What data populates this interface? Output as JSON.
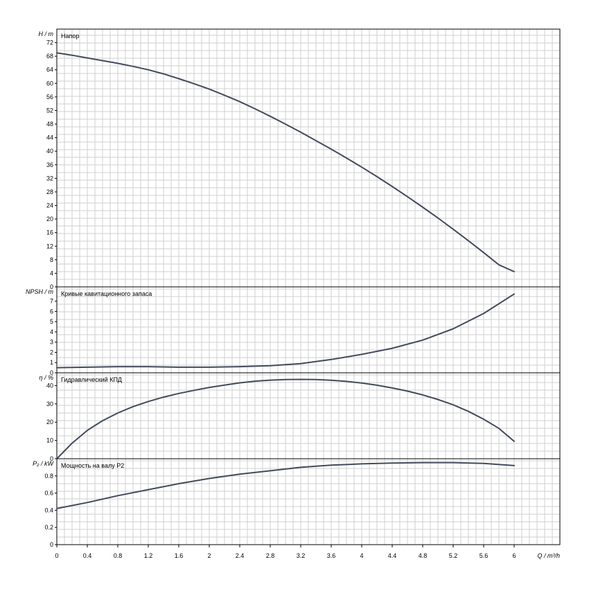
{
  "chart_data": {
    "type": "line",
    "x_unit_label": "Q / m³/h",
    "x_ticks": [
      0,
      0.4,
      0.8,
      1.2,
      1.6,
      2,
      2.4,
      2.8,
      3.2,
      3.6,
      4,
      4.4,
      4.8,
      5.2,
      5.6,
      6
    ],
    "x_range": [
      0,
      6.6
    ],
    "panels": [
      {
        "id": "head",
        "title": "Напор",
        "ylabel": "H / m",
        "ylim": [
          0,
          76
        ],
        "y_ticks": [
          0,
          4,
          8,
          12,
          16,
          20,
          24,
          28,
          32,
          36,
          40,
          44,
          48,
          52,
          56,
          60,
          64,
          68,
          72
        ],
        "series": [
          {
            "x": [
              0,
              0.2,
              0.4,
              0.6,
              0.8,
              1.0,
              1.2,
              1.4,
              1.6,
              1.8,
              2.0,
              2.2,
              2.4,
              2.6,
              2.8,
              3.0,
              3.2,
              3.4,
              3.6,
              3.8,
              4.0,
              4.2,
              4.4,
              4.6,
              4.8,
              5.0,
              5.2,
              5.4,
              5.6,
              5.8,
              6.0
            ],
            "y": [
              69.0,
              68.3,
              67.5,
              66.7,
              65.9,
              65.0,
              64.0,
              62.8,
              61.4,
              59.9,
              58.3,
              56.5,
              54.6,
              52.5,
              50.3,
              48.0,
              45.6,
              43.1,
              40.6,
              38.0,
              35.3,
              32.5,
              29.6,
              26.6,
              23.5,
              20.3,
              17.0,
              13.6,
              10.1,
              6.5,
              4.5
            ]
          }
        ]
      },
      {
        "id": "npsh",
        "title": "Кривые кавитационного запаса",
        "ylabel": "NPSH / m",
        "ylim": [
          0,
          8.4
        ],
        "y_ticks": [
          0,
          1,
          2,
          3,
          4,
          5,
          6,
          7
        ],
        "series": [
          {
            "x": [
              0,
              0.4,
              0.8,
              1.2,
              1.6,
              2.0,
              2.4,
              2.8,
              3.2,
              3.6,
              4.0,
              4.4,
              4.8,
              5.2,
              5.6,
              6.0
            ],
            "y": [
              0.5,
              0.55,
              0.6,
              0.6,
              0.55,
              0.55,
              0.6,
              0.7,
              0.9,
              1.3,
              1.8,
              2.4,
              3.2,
              4.3,
              5.8,
              7.7
            ]
          }
        ]
      },
      {
        "id": "eff",
        "title": "Гидравлический КПД",
        "ylabel": "η / %",
        "ylim": [
          0,
          47
        ],
        "y_ticks": [
          0,
          10,
          20,
          30,
          40
        ],
        "series": [
          {
            "x": [
              0,
              0.2,
              0.4,
              0.6,
              0.8,
              1.0,
              1.2,
              1.4,
              1.6,
              1.8,
              2.0,
              2.2,
              2.4,
              2.6,
              2.8,
              3.0,
              3.2,
              3.4,
              3.6,
              3.8,
              4.0,
              4.2,
              4.4,
              4.6,
              4.8,
              5.0,
              5.2,
              5.4,
              5.6,
              5.8,
              6.0
            ],
            "y": [
              0,
              8.5,
              15.5,
              20.8,
              25.0,
              28.5,
              31.3,
              33.7,
              35.7,
              37.4,
              39.0,
              40.3,
              41.5,
              42.4,
              43.0,
              43.3,
              43.4,
              43.3,
              42.9,
              42.3,
              41.4,
              40.2,
              38.7,
              37.0,
              34.9,
              32.4,
              29.5,
              25.9,
              21.6,
              16.6,
              9.5
            ]
          }
        ]
      },
      {
        "id": "power",
        "title": "Мощность на валу P2",
        "ylabel": "P₂ / kW",
        "ylim": [
          0,
          1.0
        ],
        "y_ticks": [
          0,
          0.2,
          0.4,
          0.6,
          0.8
        ],
        "series": [
          {
            "x": [
              0,
              0.4,
              0.8,
              1.2,
              1.6,
              2.0,
              2.4,
              2.8,
              3.2,
              3.6,
              4.0,
              4.4,
              4.8,
              5.2,
              5.6,
              6.0
            ],
            "y": [
              0.42,
              0.49,
              0.57,
              0.64,
              0.71,
              0.77,
              0.82,
              0.86,
              0.9,
              0.925,
              0.94,
              0.95,
              0.955,
              0.955,
              0.945,
              0.92
            ]
          }
        ]
      }
    ],
    "grid": true,
    "colors": {
      "curve": "#404a5a",
      "grid": "#cfcfcf",
      "axis": "#000000"
    }
  }
}
